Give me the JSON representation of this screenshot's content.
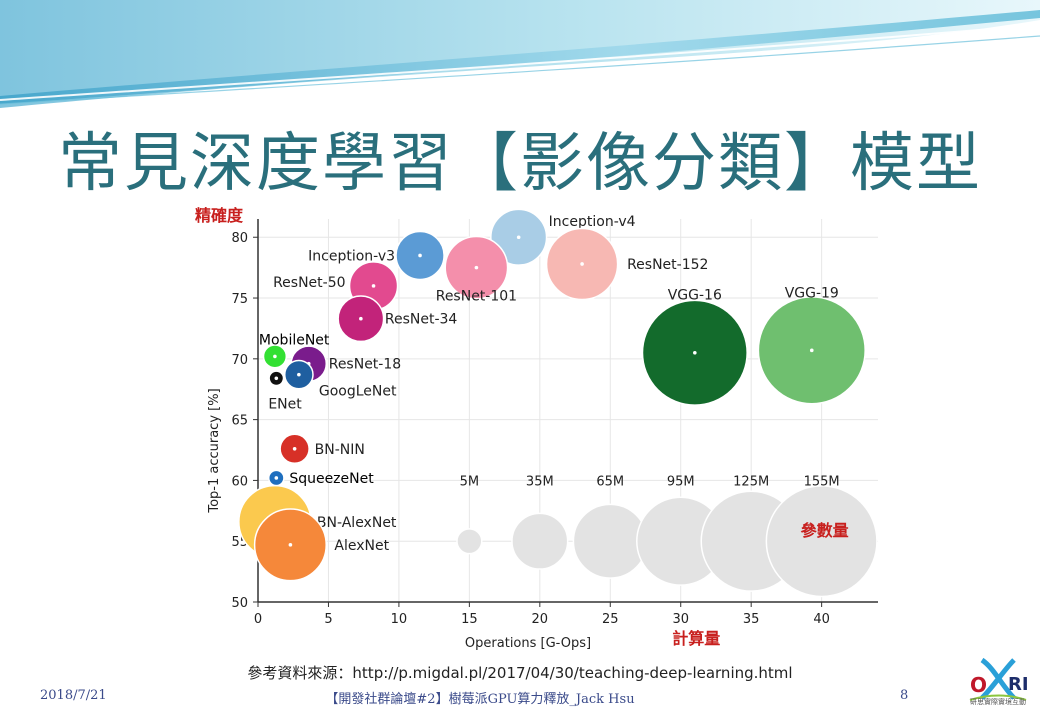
{
  "slide": {
    "title": "常見深度學習【影像分類】模型",
    "source": "參考資料來源：http://p.migdal.pl/2017/04/30/teaching-deep-learning.html",
    "footer_date": "2018/7/21",
    "footer_center": "【開發社群論壇#2】樹莓派GPU算力釋放_Jack Hsu",
    "page_number": "8",
    "logo_text": "OXRI",
    "logo_subtitle": "研思實際實境互動"
  },
  "chart_data": {
    "type": "scatter",
    "ylabel_cn": "精確度",
    "xlabel_cn": "計算量",
    "size_label_cn": "參數量",
    "xlabel": "Operations [G-Ops]",
    "ylabel": "Top-1 accuracy [%]",
    "xlim": [
      0,
      44
    ],
    "ylim": [
      50,
      81.5
    ],
    "xticks": [
      0,
      5,
      10,
      15,
      20,
      25,
      30,
      35,
      40
    ],
    "yticks": [
      50,
      55,
      60,
      65,
      70,
      75,
      80
    ],
    "grid": true,
    "points": [
      {
        "name": "Inception-v4",
        "x": 18.5,
        "y": 80.0,
        "params": 35,
        "color": "#a9cde6"
      },
      {
        "name": "ResNet-152",
        "x": 23.0,
        "y": 77.8,
        "params": 60,
        "color": "#f7b8b3"
      },
      {
        "name": "Inception-v3",
        "x": 11.5,
        "y": 78.5,
        "params": 25,
        "color": "#5b9bd5"
      },
      {
        "name": "ResNet-101",
        "x": 15.5,
        "y": 77.5,
        "params": 45,
        "color": "#f48fab"
      },
      {
        "name": "ResNet-50",
        "x": 8.2,
        "y": 76.0,
        "params": 25,
        "color": "#e24a8f"
      },
      {
        "name": "ResNet-34",
        "x": 7.3,
        "y": 73.3,
        "params": 22,
        "color": "#c2237a"
      },
      {
        "name": "VGG-16",
        "x": 31.0,
        "y": 70.5,
        "params": 138,
        "color": "#136b2c"
      },
      {
        "name": "VGG-19",
        "x": 39.3,
        "y": 70.7,
        "params": 144,
        "color": "#6fbf6f"
      },
      {
        "name": "MobileNet",
        "x": 1.2,
        "y": 70.2,
        "params": 4,
        "color": "#33e033"
      },
      {
        "name": "ResNet-18",
        "x": 3.6,
        "y": 69.6,
        "params": 12,
        "color": "#7a1c8c"
      },
      {
        "name": "GoogLeNet",
        "x": 2.9,
        "y": 68.7,
        "params": 7,
        "color": "#1f5fa0"
      },
      {
        "name": "ENet",
        "x": 1.3,
        "y": 68.4,
        "params": 1,
        "color": "#111111"
      },
      {
        "name": "BN-NIN",
        "x": 2.6,
        "y": 62.6,
        "params": 7.5,
        "color": "#d73027"
      },
      {
        "name": "SqueezeNet",
        "x": 1.3,
        "y": 60.2,
        "params": 1.2,
        "color": "#1f6fbf"
      },
      {
        "name": "BN-AlexNet",
        "x": 1.2,
        "y": 56.6,
        "params": 62,
        "color": "#fbc94e"
      },
      {
        "name": "AlexNet",
        "x": 2.3,
        "y": 54.7,
        "params": 61,
        "color": "#f5883a"
      }
    ],
    "size_legend": [
      {
        "label": "5M",
        "x": 15,
        "params": 5
      },
      {
        "label": "35M",
        "x": 20,
        "params": 35
      },
      {
        "label": "65M",
        "x": 25,
        "params": 65
      },
      {
        "label": "95M",
        "x": 30,
        "params": 95
      },
      {
        "label": "125M",
        "x": 35,
        "params": 125
      },
      {
        "label": "155M",
        "x": 40,
        "params": 155
      }
    ],
    "size_legend_y": 55
  }
}
